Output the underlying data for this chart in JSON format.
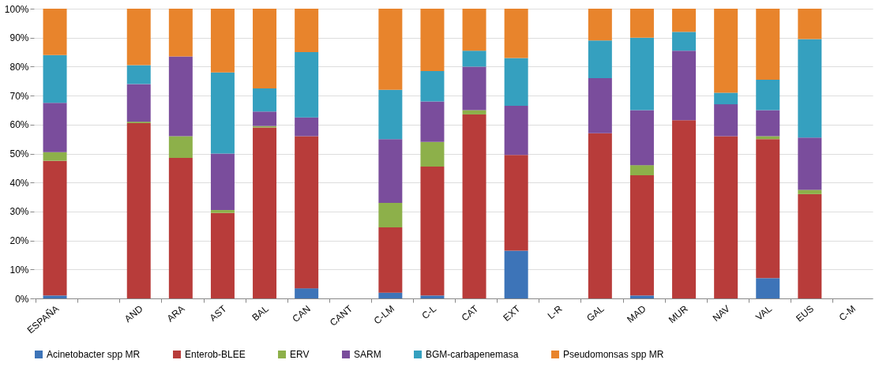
{
  "chart_data": {
    "type": "bar",
    "stacked": true,
    "categories": [
      "ESPAÑA",
      null,
      "AND",
      "ARA",
      "AST",
      "BAL",
      "CAN",
      "CANT",
      "C-LM",
      "C-L",
      "CAT",
      "EXT",
      "L-R",
      "GAL",
      "MAD",
      "MUR",
      "NAV",
      "VAL",
      "EUS",
      "C-M"
    ],
    "series": [
      {
        "name": "Acinetobacter spp MR",
        "color": "#3d74b8",
        "values": [
          1,
          null,
          0,
          0,
          0,
          0,
          3.5,
          null,
          2,
          1,
          0,
          16.5,
          null,
          0,
          1,
          0,
          0,
          7,
          0,
          null
        ]
      },
      {
        "name": "Enterob-BLEE",
        "color": "#b83c3a",
        "values": [
          46.5,
          null,
          60.5,
          48.5,
          29.5,
          59,
          52.5,
          null,
          22.5,
          44.5,
          63.5,
          33,
          null,
          57,
          41.5,
          61.5,
          56,
          48,
          36,
          null
        ]
      },
      {
        "name": "ERV",
        "color": "#8db04a",
        "values": [
          3,
          null,
          0.5,
          7.5,
          1,
          0.5,
          0,
          null,
          8.5,
          8.5,
          1.5,
          0,
          null,
          0,
          3.5,
          0,
          0,
          1,
          1.5,
          null
        ]
      },
      {
        "name": "SARM",
        "color": "#7a4d9c",
        "values": [
          17,
          null,
          13,
          27.5,
          19.5,
          5,
          6.5,
          null,
          22,
          14,
          15,
          17,
          null,
          19,
          19,
          24,
          11,
          9,
          18,
          null
        ]
      },
      {
        "name": "BGM-carbapenemasa",
        "color": "#35a0bf",
        "values": [
          16.5,
          null,
          6.5,
          0,
          28,
          8,
          22.5,
          null,
          17,
          10.5,
          5.5,
          16.5,
          null,
          13,
          25,
          6.5,
          4,
          10.5,
          34,
          null
        ]
      },
      {
        "name": "Pseudomonsas spp MR",
        "color": "#e8842c",
        "values": [
          16,
          null,
          19.5,
          16.5,
          22,
          27.5,
          15,
          null,
          28,
          21.5,
          14.5,
          17,
          null,
          11,
          10,
          8,
          29,
          24.5,
          10.5,
          null
        ]
      }
    ],
    "ylim": [
      0,
      100
    ],
    "yticks": [
      {
        "value": 0,
        "label": "0%"
      },
      {
        "value": 10,
        "label": "10%"
      },
      {
        "value": 20,
        "label": "20%"
      },
      {
        "value": 30,
        "label": "30%"
      },
      {
        "value": 40,
        "label": "40%"
      },
      {
        "value": 50,
        "label": "50%"
      },
      {
        "value": 60,
        "label": "60%"
      },
      {
        "value": 70,
        "label": "70%"
      },
      {
        "value": 80,
        "label": "80%"
      },
      {
        "value": 90,
        "label": "90%"
      },
      {
        "value": 100,
        "label": "100%"
      }
    ],
    "grid": "y",
    "legend": "bottom"
  }
}
